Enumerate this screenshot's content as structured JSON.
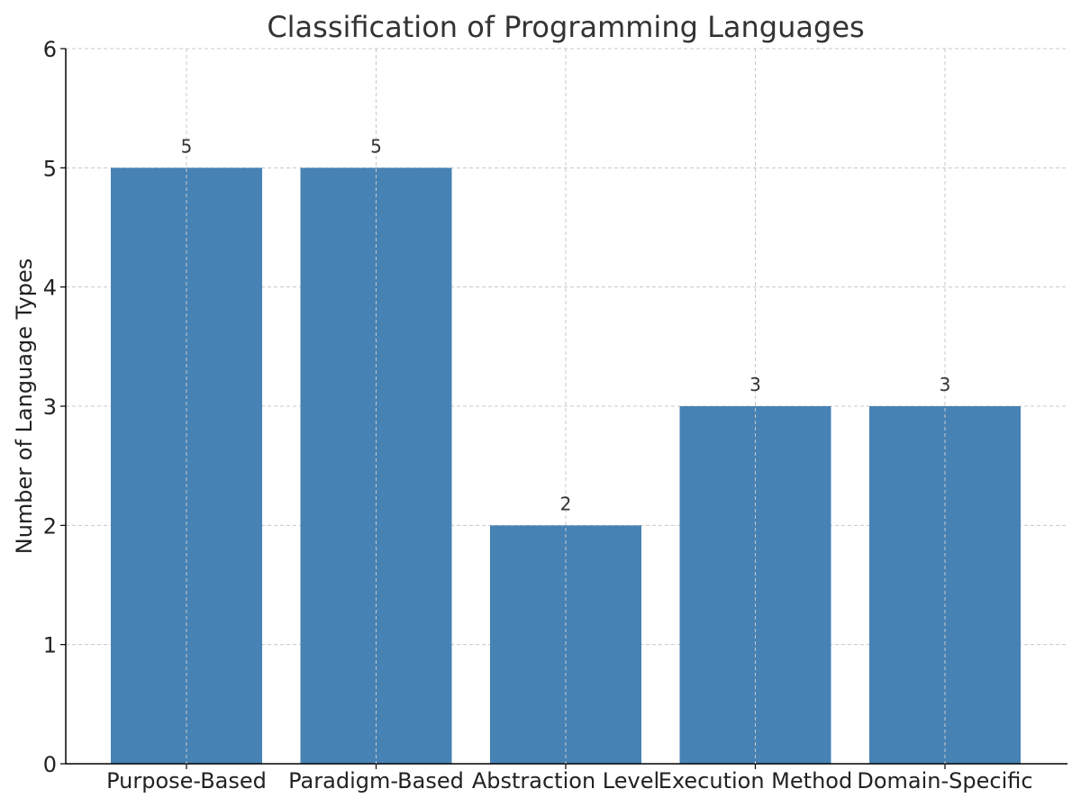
{
  "chart_data": {
    "type": "bar",
    "title": "Classification of Programming Languages",
    "xlabel": "",
    "ylabel": "Number of Language Types",
    "categories": [
      "Purpose-Based",
      "Paradigm-Based",
      "Abstraction Level",
      "Execution Method",
      "Domain-Specific"
    ],
    "values": [
      5,
      5,
      2,
      3,
      3
    ],
    "data_labels": [
      "5",
      "5",
      "2",
      "3",
      "3"
    ],
    "ylim": [
      0,
      6
    ],
    "yticks": [
      0,
      1,
      2,
      3,
      4,
      5,
      6
    ],
    "grid": true,
    "bar_color": "#4682b4"
  }
}
